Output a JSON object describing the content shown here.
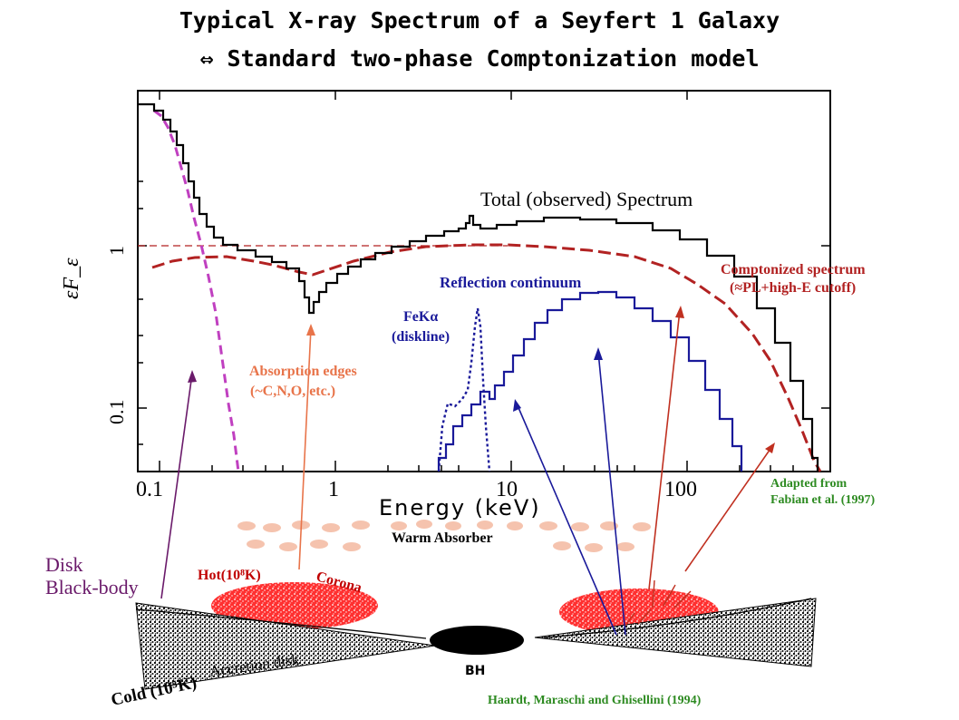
{
  "titles": {
    "line1": "Typical X-ray Spectrum of a Seyfert 1 Galaxy",
    "line2": "⇔ Standard two-phase Comptonization model"
  },
  "chart_data": {
    "type": "line",
    "xlabel": "Energy (keV)",
    "ylabel": "εF_ε",
    "xscale": "log",
    "yscale": "log",
    "x_ticks": [
      "0.1",
      "1",
      "10",
      "100"
    ],
    "y_ticks": [
      "1",
      "0.1"
    ],
    "series": [
      {
        "name": "Total (observed) Spectrum",
        "color": "#000000"
      },
      {
        "name": "Comptonized spectrum (≈PL+high-E cutoff)",
        "color": "#b22222"
      },
      {
        "name": "Reflection continuum",
        "color": "#1a1a9a"
      },
      {
        "name": "FeKα (diskline)",
        "color": "#1a1a9a"
      },
      {
        "name": "Disk Black-body",
        "color": "#c040c0"
      }
    ]
  },
  "annotations": {
    "total": "Total (observed) Spectrum",
    "compton1": "Comptonized spectrum",
    "compton2": "(≈PL+high-E cutoff)",
    "reflection": "Reflection continuum",
    "fek1": "FeKα",
    "fek2": "(diskline)",
    "abs1": "Absorption edges",
    "abs2": "(~C,N,O, etc.)",
    "warm": "Warm Absorber",
    "disk1": "Disk",
    "disk2": "Black-body",
    "hot": "Hot(10⁸K)",
    "corona": "Corona",
    "cold": "Cold (10⁵K)",
    "accretion": "Accretion disk",
    "bh": "BH"
  },
  "credits": {
    "fabian1": "Adapted from",
    "fabian2": "Fabian et al. (1997)",
    "haardt": "Haardt, Maraschi and Ghisellini (1994)"
  },
  "colors": {
    "total": "#000000",
    "compton": "#b22222",
    "reflection": "#1a1a9a",
    "disk_bb": "#c040c0",
    "absorption_label": "#e8744a",
    "corona": "#ff2020",
    "credit": "#2e8b22",
    "disk_label": "#6a1a6a"
  }
}
